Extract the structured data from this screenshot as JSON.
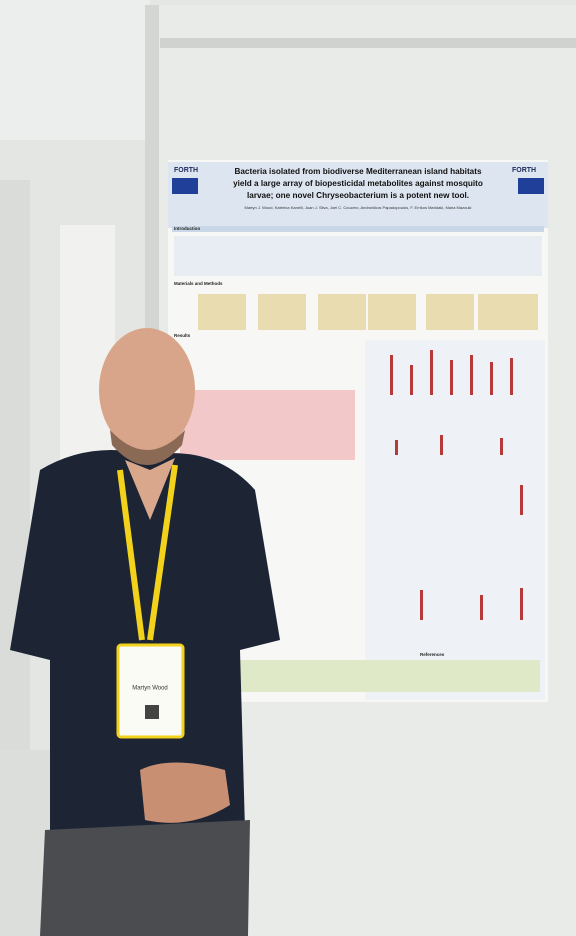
{
  "poster": {
    "logo_left": "FORTH",
    "logo_right": "FORTH",
    "title_lines": [
      "Bacteria isolated from biodiverse Mediterranean island habitats",
      "yield a large array of biopesticidal metabolites against mosquito",
      "larvae; one novel Chryseobacterium is a potent new tool."
    ],
    "authors": "Martyn J. Wood, Katerina Kanelli, Juan J. Silva, Joel C. Coucero, Androniikos Papadopoulos, F. Errikos Maridaki, Maria Mazouki",
    "sections": [
      "Introduction",
      "Materials and Methods",
      "Results",
      "References"
    ]
  },
  "badge": {
    "name": "Martyn Wood"
  }
}
